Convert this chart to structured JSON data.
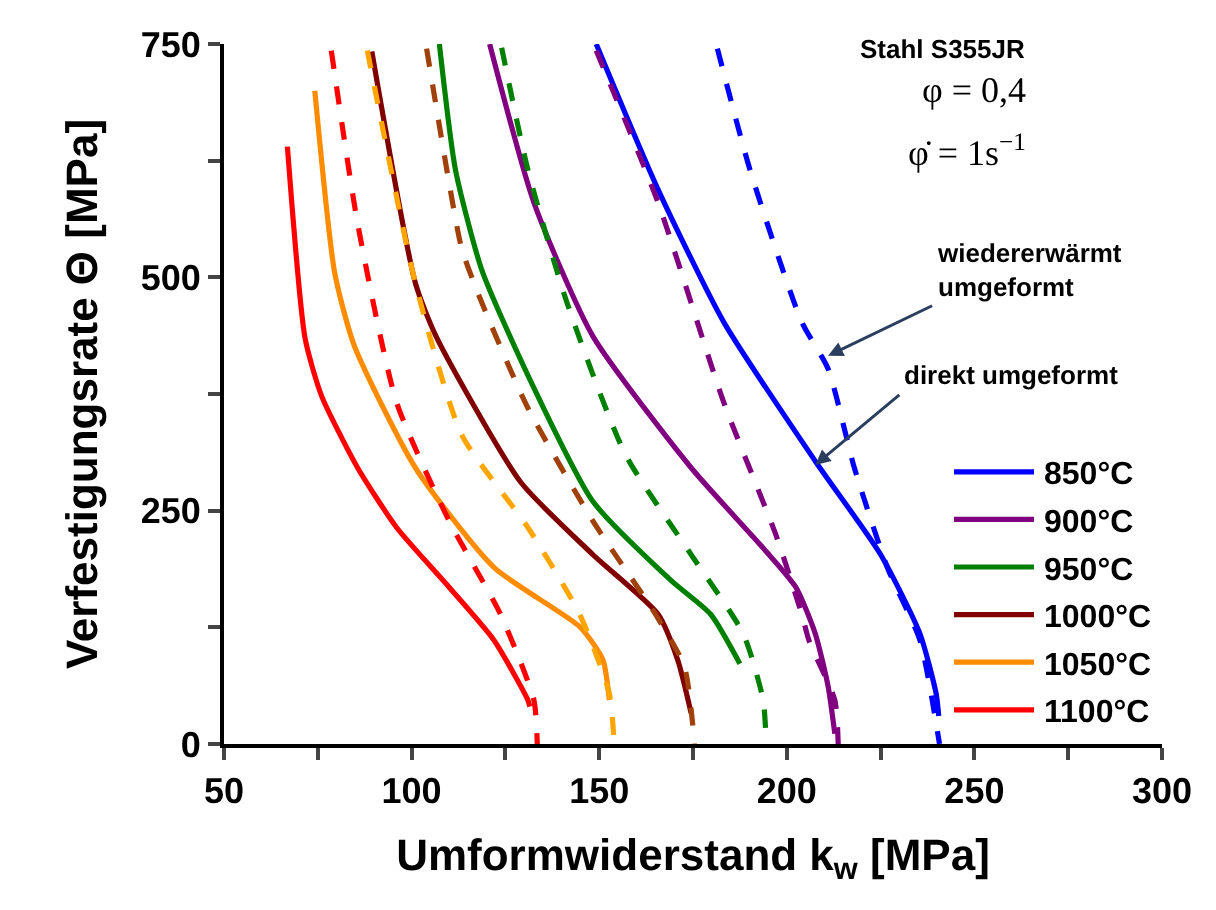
{
  "chart_data": {
    "type": "line",
    "xlabel": "Umformwiderstand k$_{w}$ [MPa]",
    "ylabel": "Verfestigungsrate Θ [MPa]",
    "xlim": [
      50,
      300
    ],
    "ylim": [
      0,
      750
    ],
    "xticks": [
      50,
      {
        "value": 75,
        "label": null
      },
      100,
      {
        "value": 125,
        "label": null
      },
      150,
      {
        "value": 175,
        "label": null
      },
      200,
      {
        "value": 225,
        "label": null
      },
      250,
      {
        "value": 275,
        "label": null
      },
      300
    ],
    "yticks": [
      0,
      {
        "value": 125,
        "label": null
      },
      250,
      {
        "value": 375,
        "label": null
      },
      500,
      {
        "value": 625,
        "label": null
      },
      750
    ],
    "legend": "bottom right",
    "series": [
      {
        "name": "850°C",
        "color": "#0000ff",
        "line_style": "solid",
        "x": [
          149.2,
          165.7,
          183.2,
          207.6,
          225,
          235.5,
          239.8,
          240.5
        ],
        "values": [
          750,
          594,
          452,
          303,
          203,
          118,
          54,
          30
        ]
      },
      {
        "name": "900°C",
        "color": "#800080",
        "line_style": "solid",
        "x": [
          120.8,
          132.6,
          148.3,
          174.5,
          193.7,
          202.4,
          207.6,
          211,
          212.8
        ],
        "values": [
          750,
          580,
          437,
          296,
          210,
          168,
          118,
          62,
          11
        ]
      },
      {
        "name": "950°C",
        "color": "#008000",
        "line_style": "solid",
        "x": [
          107.4,
          111.7,
          118.7,
          131,
          148.3,
          169.2,
          179.7,
          187.5
        ],
        "values": [
          750,
          615,
          508,
          395,
          260,
          175,
          139,
          86
        ]
      },
      {
        "name": "1000°C",
        "color": "#800000",
        "line_style": "solid",
        "x": [
          89.4,
          101,
          106.5,
          129,
          148.3,
          165.7,
          171,
          174.5
        ],
        "values": [
          742,
          494,
          437,
          281,
          203,
          139,
          89,
          33
        ]
      },
      {
        "name": "1050°C",
        "color": "#ff8c00",
        "line_style": "solid",
        "x": [
          74.2,
          79.5,
          84.7,
          101,
          122,
          145,
          151,
          152.7
        ],
        "values": [
          700,
          505,
          427,
          296,
          189,
          125,
          90,
          47
        ]
      },
      {
        "name": "1100°C",
        "color": "#ff0000",
        "line_style": "solid",
        "x": [
          66.9,
          71.6,
          76,
          85.6,
          96,
          110,
          122,
          131,
          131.5
        ],
        "values": [
          640,
          435,
          373,
          296,
          232,
          168,
          111,
          47,
          40
        ]
      },
      {
        "color": "#0000ff",
        "line_style": "dashed",
        "x": [
          181.5,
          190.2,
          204,
          211,
          218,
          226.8,
          235.5,
          240.7
        ],
        "values": [
          745,
          615,
          452,
          402,
          296,
          189,
          111,
          0
        ]
      },
      {
        "color": "#800080",
        "line_style": "dashed",
        "x": [
          149.2,
          165.7,
          183.2,
          197.1,
          204,
          205.9,
          212.8,
          213.7
        ],
        "values": [
          743,
          580,
          366,
          224,
          139,
          111,
          47,
          0
        ]
      },
      {
        "color": "#008000",
        "line_style": "dashed",
        "x": [
          124,
          131,
          141.4,
          157,
          174.5,
          188.4,
          193.7,
          194.5
        ],
        "values": [
          746,
          615,
          473,
          310,
          203,
          118,
          47,
          0
        ]
      },
      {
        "color": "#a0400a",
        "line_style": "dashed",
        "x": [
          104,
          110,
          113.4,
          118.7,
          131,
          148.3,
          165,
          172.7,
          175.4
        ],
        "values": [
          745,
          601,
          530,
          473,
          360,
          239,
          139,
          83,
          0
        ]
      },
      {
        "color": "#ffa500",
        "line_style": "dashed",
        "x": [
          88.2,
          101,
          113.4,
          131,
          144.8,
          152.7,
          154
        ],
        "values": [
          743,
          494,
          331,
          232,
          139,
          54,
          0
        ]
      },
      {
        "color": "#ff0000",
        "line_style": "dashed",
        "x": [
          78.6,
          85.6,
          96,
          110,
          123.7,
          132.6,
          133.5
        ],
        "values": [
          743,
          558,
          366,
          239,
          139,
          47,
          0
        ]
      }
    ],
    "annotations": [
      "Stahl S355JR",
      "φ = 0,4",
      "φ̇ = 1s$^{−1}$",
      {
        "text": "wiedererwärmt\numgeformt",
        "x": 211,
        "y": 416
      },
      {
        "text": "direkt umgeformt",
        "x": 207.6,
        "y": 299
      }
    ]
  }
}
